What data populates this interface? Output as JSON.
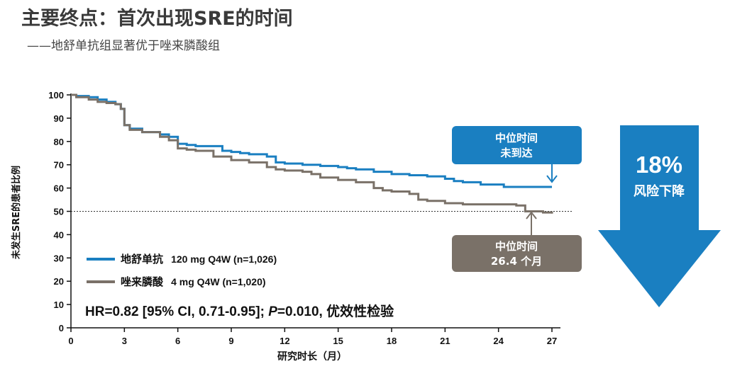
{
  "header": {
    "title": "主要终点：首次出现SRE的时间",
    "subtitle": "——地舒单抗组显著优于唑来膦酸组"
  },
  "colors": {
    "denosumab": "#1a7fc1",
    "zoledronic": "#7a7168",
    "box_blue": "#1a7fc1",
    "box_gray": "#7a7168",
    "big_arrow": "#1a7fc1"
  },
  "chart_data": {
    "type": "line",
    "title": "",
    "xlabel": "研究时长（月）",
    "ylabel": "未发生SRE的患者比例",
    "xlim": [
      0,
      27
    ],
    "ylim": [
      0,
      100
    ],
    "xticks": [
      0,
      3,
      6,
      9,
      12,
      15,
      18,
      21,
      24,
      27
    ],
    "yticks": [
      0,
      10,
      20,
      30,
      40,
      50,
      60,
      70,
      80,
      90,
      100
    ],
    "reference_line": 50,
    "series": [
      {
        "name": "地舒单抗",
        "detail": "120 mg Q4W (n=1,026)",
        "color": "#1a7fc1",
        "x": [
          0,
          0.3,
          1,
          1.5,
          2,
          2.5,
          2.8,
          3,
          3.3,
          4,
          5,
          5.5,
          6,
          6.5,
          7,
          7.5,
          8,
          8.5,
          9,
          9.5,
          10,
          11,
          11.5,
          12,
          13,
          14,
          15,
          15.5,
          16,
          17,
          18,
          19,
          20,
          21,
          21.5,
          22,
          22.5,
          23,
          24,
          24.3,
          25,
          26,
          27
        ],
        "y": [
          100,
          99.5,
          99,
          98,
          97,
          96,
          94,
          87,
          85.5,
          84,
          83,
          82,
          79,
          78.5,
          78,
          78,
          78,
          76,
          75.5,
          75,
          74.5,
          73.5,
          71,
          70.5,
          70,
          69.5,
          69,
          68.5,
          68,
          67,
          66,
          65.5,
          65,
          64,
          63,
          62.5,
          62.5,
          61.5,
          61.5,
          60.5,
          60.5,
          60.5,
          60.5
        ]
      },
      {
        "name": "唑来膦酸",
        "detail": "4 mg Q4W (n=1,020)",
        "color": "#7a7168",
        "x": [
          0,
          0.3,
          1,
          1.5,
          2,
          2.5,
          2.8,
          3,
          3.3,
          4,
          5,
          5.5,
          6,
          6.5,
          7,
          8,
          9,
          10,
          11,
          11.5,
          12,
          13,
          13.5,
          14,
          15,
          16,
          17,
          17.5,
          18,
          19,
          19.5,
          20,
          21,
          22,
          23,
          24,
          24.3,
          25,
          25.5,
          26,
          26.5,
          27
        ],
        "y": [
          100,
          99,
          98,
          97,
          96.5,
          96,
          94,
          87,
          85,
          84,
          82,
          80.5,
          77,
          76.5,
          76,
          73.5,
          72,
          71,
          69,
          68,
          67.5,
          67,
          66,
          64.5,
          63.5,
          62.5,
          60,
          59,
          58.5,
          57.5,
          55,
          54.5,
          53.5,
          53,
          53,
          53,
          53,
          52.5,
          50,
          50,
          49.5,
          49
        ]
      }
    ],
    "legend": [
      {
        "name": "地舒单抗",
        "detail": "120 mg Q4W (n=1,026)"
      },
      {
        "name": "唑来膦酸",
        "detail": "4 mg Q4W (n=1,020)"
      }
    ],
    "annotations": {
      "stat": "HR=0.82 [95% CI, 0.71-0.95]; P=0.010, 优效性检验",
      "stat_prefix": "HR=0.82 [95% CI, 0.71-0.95]; ",
      "stat_p": "P",
      "stat_suffix": "=0.010, 优效性检验",
      "median_deno": [
        "中位时间",
        "未到达"
      ],
      "median_zol": [
        "中位时间",
        "26.4 个月"
      ],
      "risk_pct": "18%",
      "risk_text": "风险下降"
    }
  }
}
